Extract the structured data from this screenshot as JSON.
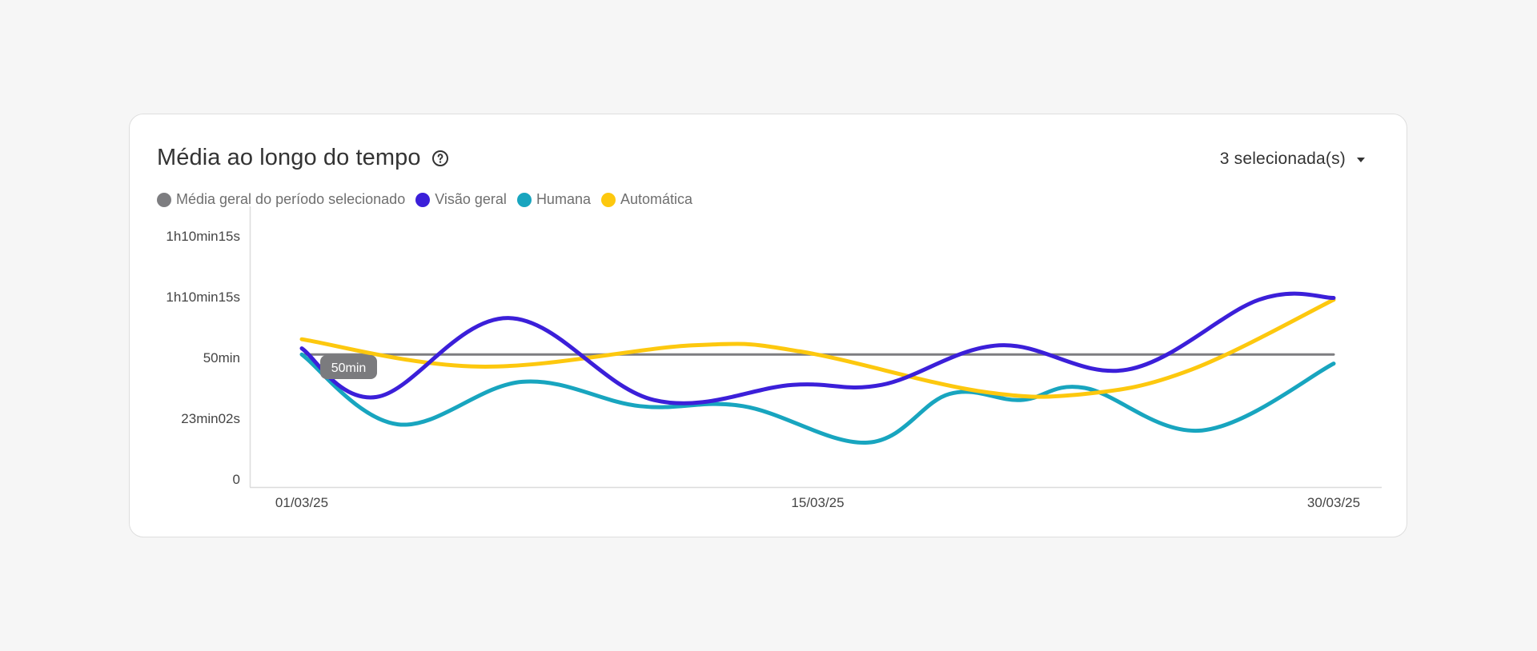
{
  "header": {
    "title": "Média ao longo do tempo",
    "help_icon": "help-circle-icon",
    "selector": {
      "label": "3 selecionada(s)",
      "icon": "caret-down-icon"
    }
  },
  "tooltip": {
    "label": "50min"
  },
  "chart_data": {
    "type": "line",
    "title": "Média ao longo do tempo",
    "xlabel": "",
    "ylabel": "",
    "x_ticks": [
      "01/03/25",
      "15/03/25",
      "30/03/25"
    ],
    "y_ticks": [
      {
        "value": 0,
        "label": "0"
      },
      {
        "value": 1,
        "label": "23min02s"
      },
      {
        "value": 2,
        "label": "50min"
      },
      {
        "value": 3,
        "label": "1h10min15s"
      },
      {
        "value": 4,
        "label": "1h10min15s"
      }
    ],
    "ylim": [
      0,
      4
    ],
    "xlim": [
      1,
      30
    ],
    "grid": false,
    "legend_position": "top-left",
    "series": [
      {
        "name": "Média geral do período selecionado",
        "color": "#7d7d80",
        "smooth": false,
        "points": [
          [
            1,
            2.05
          ],
          [
            30,
            2.05
          ]
        ]
      },
      {
        "name": "Visão geral",
        "color": "#3b1fd9",
        "smooth": true,
        "points": [
          [
            1,
            2.15
          ],
          [
            3.1,
            1.35
          ],
          [
            6.8,
            2.65
          ],
          [
            10.9,
            1.3
          ],
          [
            14.8,
            1.55
          ],
          [
            17.3,
            1.55
          ],
          [
            20.6,
            2.2
          ],
          [
            24.2,
            1.8
          ],
          [
            27.9,
            2.95
          ],
          [
            30,
            2.98
          ]
        ]
      },
      {
        "name": "Humana",
        "color": "#18a5bf",
        "smooth": true,
        "points": [
          [
            1,
            2.05
          ],
          [
            3.7,
            0.9
          ],
          [
            7.2,
            1.6
          ],
          [
            10.5,
            1.2
          ],
          [
            13.4,
            1.2
          ],
          [
            16.9,
            0.6
          ],
          [
            19.2,
            1.4
          ],
          [
            21.2,
            1.3
          ],
          [
            23,
            1.5
          ],
          [
            26.3,
            0.8
          ],
          [
            30,
            1.9
          ]
        ]
      },
      {
        "name": "Automática",
        "color": "#fdc80e",
        "smooth": true,
        "points": [
          [
            1,
            2.3
          ],
          [
            6,
            1.85
          ],
          [
            12,
            2.2
          ],
          [
            15,
            2.1
          ],
          [
            20,
            1.45
          ],
          [
            23,
            1.4
          ],
          [
            26,
            1.8
          ],
          [
            30,
            2.95
          ]
        ]
      }
    ]
  }
}
